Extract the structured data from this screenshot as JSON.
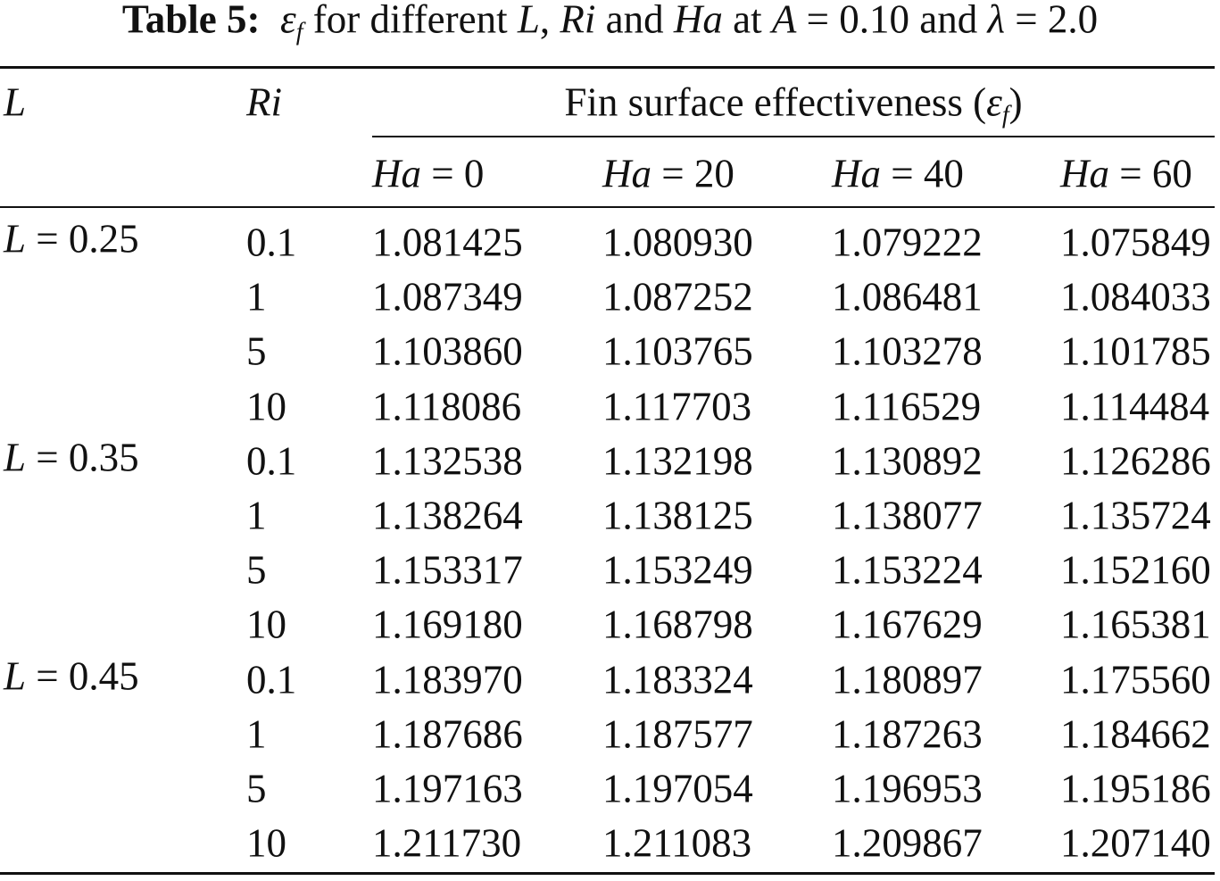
{
  "caption": {
    "label": "Table 5:",
    "segments": [
      "ε",
      "f",
      " for different ",
      "L",
      ", ",
      "Ri",
      " and ",
      "Ha",
      " at ",
      "A",
      " = 0.10 and ",
      "λ",
      " = 2.0"
    ]
  },
  "table": {
    "header": {
      "col_l": "L",
      "col_ri": "Ri",
      "span": [
        "Fin surface effectiveness (",
        "ε",
        "f",
        ")"
      ],
      "sub_headers": [
        [
          "Ha",
          " = 0"
        ],
        [
          "Ha",
          " = 20"
        ],
        [
          "Ha",
          " = 40"
        ],
        [
          "Ha",
          " = 60"
        ]
      ]
    },
    "groups": [
      {
        "label": [
          "L",
          " = 0.25"
        ],
        "rows": [
          {
            "ri": "0.1",
            "values": [
              "1.081425",
              "1.080930",
              "1.079222",
              "1.075849"
            ]
          },
          {
            "ri": "1",
            "values": [
              "1.087349",
              "1.087252",
              "1.086481",
              "1.084033"
            ]
          },
          {
            "ri": "5",
            "values": [
              "1.103860",
              "1.103765",
              "1.103278",
              "1.101785"
            ]
          },
          {
            "ri": "10",
            "values": [
              "1.118086",
              "1.117703",
              "1.116529",
              "1.114484"
            ]
          }
        ]
      },
      {
        "label": [
          "L",
          " = 0.35"
        ],
        "rows": [
          {
            "ri": "0.1",
            "values": [
              "1.132538",
              "1.132198",
              "1.130892",
              "1.126286"
            ]
          },
          {
            "ri": "1",
            "values": [
              "1.138264",
              "1.138125",
              "1.138077",
              "1.135724"
            ]
          },
          {
            "ri": "5",
            "values": [
              "1.153317",
              "1.153249",
              "1.153224",
              "1.152160"
            ]
          },
          {
            "ri": "10",
            "values": [
              "1.169180",
              "1.168798",
              "1.167629",
              "1.165381"
            ]
          }
        ]
      },
      {
        "label": [
          "L",
          " = 0.45"
        ],
        "rows": [
          {
            "ri": "0.1",
            "values": [
              "1.183970",
              "1.183324",
              "1.180897",
              "1.175560"
            ]
          },
          {
            "ri": "1",
            "values": [
              "1.187686",
              "1.187577",
              "1.187263",
              "1.184662"
            ]
          },
          {
            "ri": "5",
            "values": [
              "1.197163",
              "1.197054",
              "1.196953",
              "1.195186"
            ]
          },
          {
            "ri": "10",
            "values": [
              "1.211730",
              "1.211083",
              "1.209867",
              "1.207140"
            ]
          }
        ]
      }
    ]
  }
}
